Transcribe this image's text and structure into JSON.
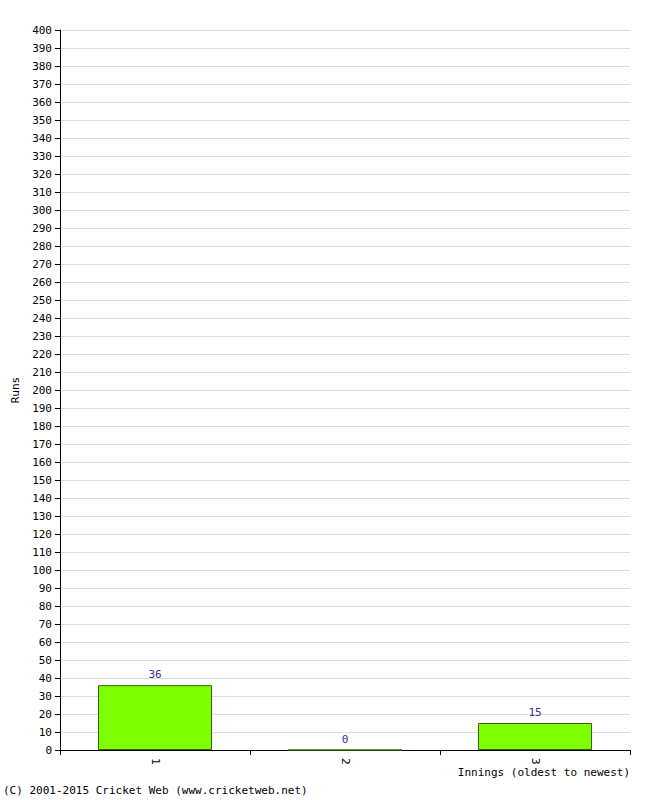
{
  "chart_data": {
    "type": "bar",
    "categories": [
      "1",
      "2",
      "3"
    ],
    "values": [
      36,
      0,
      15
    ],
    "color": "#80ff00",
    "y_label": "Runs",
    "x_label": "Innings (oldest to newest)",
    "footnote": "(C) 2001-2015 Cricket Web (www.cricketweb.net)",
    "ylim": [
      0,
      400
    ],
    "yticks": [
      0,
      10,
      20,
      30,
      40,
      50,
      60,
      70,
      80,
      90,
      100,
      110,
      120,
      130,
      140,
      150,
      160,
      170,
      180,
      190,
      200,
      210,
      220,
      230,
      240,
      250,
      260,
      270,
      280,
      290,
      300,
      310,
      320,
      330,
      340,
      350,
      360,
      370,
      380,
      390,
      400
    ],
    "grid": true,
    "data_labels": true
  }
}
